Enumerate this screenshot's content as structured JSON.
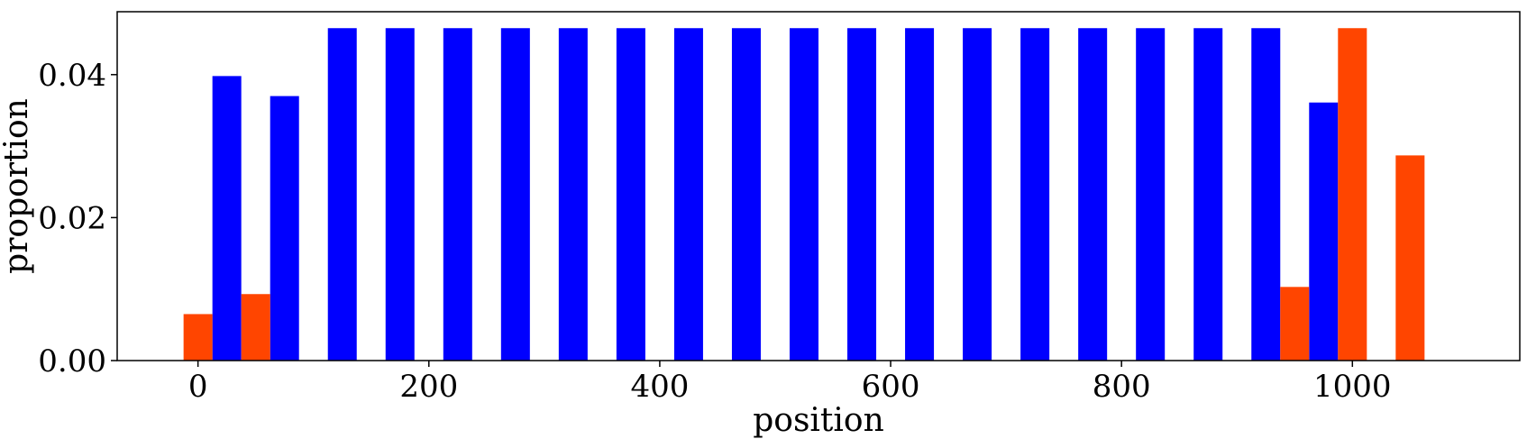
{
  "chart_data": {
    "type": "bar",
    "xlabel": "position",
    "ylabel": "proportion",
    "xlim": [
      -70,
      1145
    ],
    "ylim": [
      0,
      0.0488
    ],
    "x_ticks": [
      {
        "value": 0,
        "label": "0"
      },
      {
        "value": 200,
        "label": "200"
      },
      {
        "value": 400,
        "label": "400"
      },
      {
        "value": 600,
        "label": "600"
      },
      {
        "value": 800,
        "label": "800"
      },
      {
        "value": 1000,
        "label": "1000"
      }
    ],
    "y_ticks": [
      {
        "value": 0,
        "label": "0.00"
      },
      {
        "value": 0.02,
        "label": "0.02"
      },
      {
        "value": 0.04,
        "label": "0.04"
      }
    ],
    "bar_width": 25,
    "grid": false,
    "legend": "none",
    "series": [
      {
        "color": "#0000ff",
        "bars": [
          {
            "x": 25,
            "y": 0.0398
          },
          {
            "x": 75,
            "y": 0.037
          },
          {
            "x": 125,
            "y": 0.0465
          },
          {
            "x": 175,
            "y": 0.0465
          },
          {
            "x": 225,
            "y": 0.0465
          },
          {
            "x": 275,
            "y": 0.0465
          },
          {
            "x": 325,
            "y": 0.0465
          },
          {
            "x": 375,
            "y": 0.0465
          },
          {
            "x": 425,
            "y": 0.0465
          },
          {
            "x": 475,
            "y": 0.0465
          },
          {
            "x": 525,
            "y": 0.0465
          },
          {
            "x": 575,
            "y": 0.0465
          },
          {
            "x": 625,
            "y": 0.0465
          },
          {
            "x": 675,
            "y": 0.0465
          },
          {
            "x": 725,
            "y": 0.0465
          },
          {
            "x": 775,
            "y": 0.0465
          },
          {
            "x": 825,
            "y": 0.0465
          },
          {
            "x": 875,
            "y": 0.0465
          },
          {
            "x": 925,
            "y": 0.0465
          },
          {
            "x": 975,
            "y": 0.0361
          }
        ]
      },
      {
        "color": "#ff4500",
        "bars": [
          {
            "x": 0,
            "y": 0.0065
          },
          {
            "x": 50,
            "y": 0.0093
          },
          {
            "x": 950,
            "y": 0.0103
          },
          {
            "x": 1000,
            "y": 0.0465
          },
          {
            "x": 1050,
            "y": 0.0287
          }
        ]
      }
    ]
  }
}
